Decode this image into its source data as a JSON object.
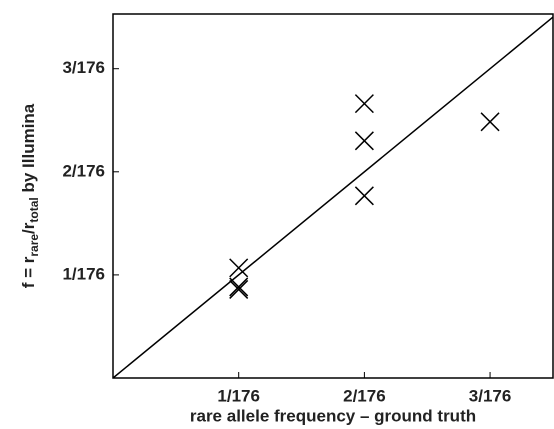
{
  "chart_data": {
    "type": "scatter",
    "xlabel": "rare allele frequency – ground truth",
    "ylabel": [
      "f = r",
      "rare",
      "/r",
      "total",
      " by Illumina"
    ],
    "x": [
      0.005682,
      0.005682,
      0.005682,
      0.011364,
      0.011364,
      0.011364,
      0.017045
    ],
    "y": [
      0.00607,
      0.00502,
      0.00488,
      0.01512,
      0.01307,
      0.01004,
      0.01412
    ],
    "marker": "x",
    "color": "#000000",
    "diagonal": true,
    "xlim": [
      0,
      0.01989
    ],
    "ylim": [
      0,
      0.02006
    ],
    "xticks": [
      {
        "value": 0.005682,
        "label": "1/176"
      },
      {
        "value": 0.011364,
        "label": "2/176"
      },
      {
        "value": 0.017045,
        "label": "3/176"
      }
    ],
    "yticks": [
      {
        "value": 0.005682,
        "label": "1/176"
      },
      {
        "value": 0.011364,
        "label": "2/176"
      },
      {
        "value": 0.017045,
        "label": "3/176"
      }
    ]
  }
}
